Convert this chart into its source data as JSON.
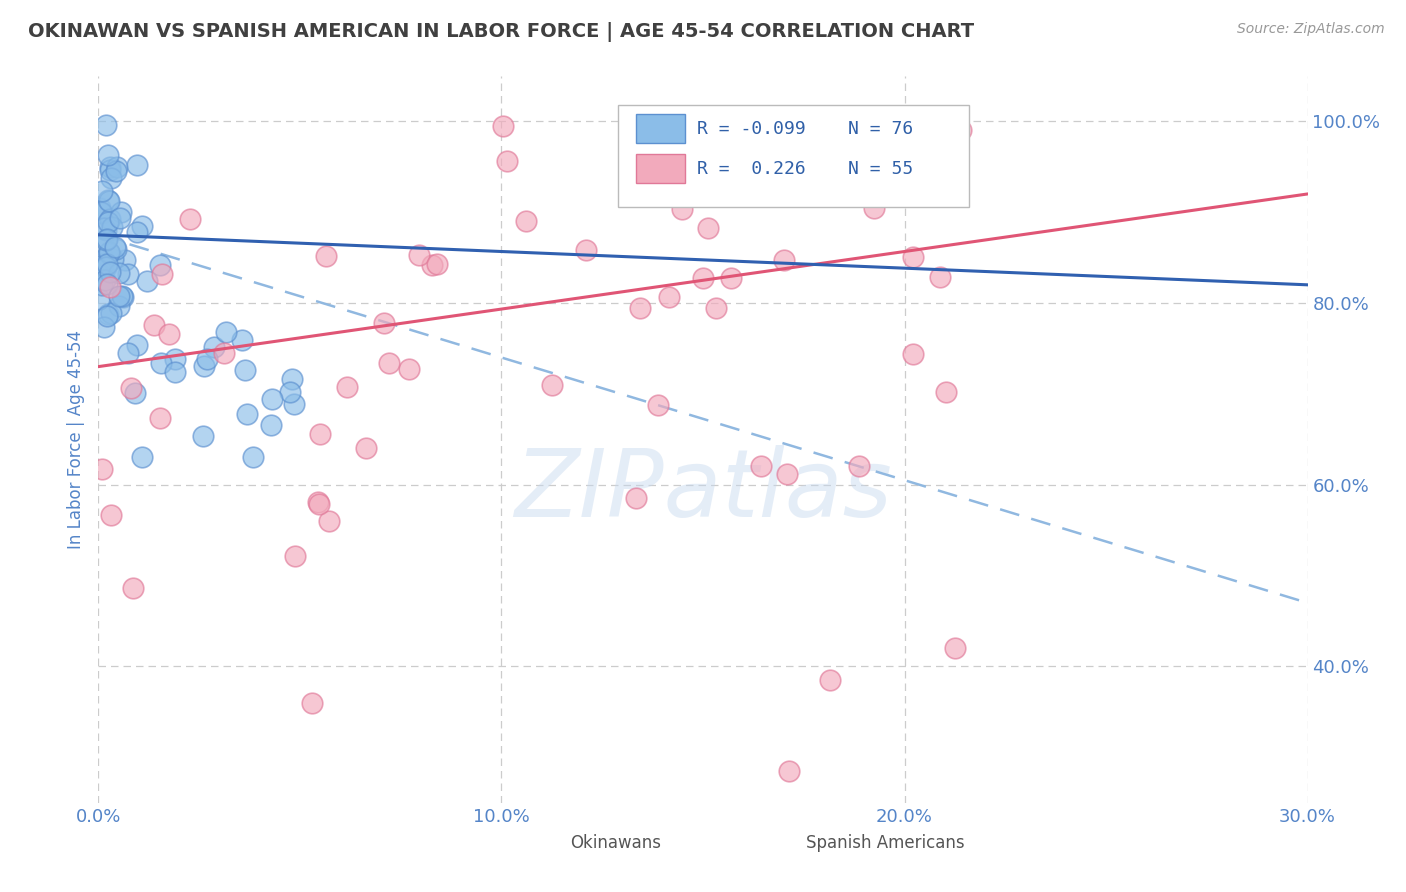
{
  "title": "OKINAWAN VS SPANISH AMERICAN IN LABOR FORCE | AGE 45-54 CORRELATION CHART",
  "source": "Source: ZipAtlas.com",
  "ylabel": "In Labor Force | Age 45-54",
  "xlim": [
    0.0,
    30.0
  ],
  "ylim": [
    25.0,
    105.0
  ],
  "xticks": [
    0.0,
    10.0,
    20.0,
    30.0
  ],
  "xtick_labels": [
    "0.0%",
    "10.0%",
    "20.0%",
    "30.0%"
  ],
  "yticks": [
    40.0,
    60.0,
    80.0,
    100.0
  ],
  "ytick_labels": [
    "40.0%",
    "60.0%",
    "80.0%",
    "100.0%"
  ],
  "legend_labels": [
    "Okinawans",
    "Spanish Americans"
  ],
  "okinawan_color": "#8BBDE8",
  "spanish_color": "#F2AABC",
  "okinawan_edge": "#5C90D0",
  "spanish_edge": "#E07898",
  "trend_blue": "#3060B0",
  "trend_pink": "#E05575",
  "trend_dashed_color": "#90B8E0",
  "R_okinawan": -0.099,
  "N_okinawan": 76,
  "R_spanish": 0.226,
  "N_spanish": 55,
  "background_color": "#FFFFFF",
  "grid_color": "#CCCCCC",
  "title_color": "#404040",
  "tick_color": "#5585C8",
  "legend_r_color": "#3060A8",
  "watermark": "ZIPatlas",
  "ok_trend_x0": 0.0,
  "ok_trend_y0": 87.5,
  "ok_trend_x1": 30.0,
  "ok_trend_y1": 82.0,
  "ok_dash_x0": 0.0,
  "ok_dash_y0": 87.5,
  "ok_dash_x1": 30.0,
  "ok_dash_y1": 47.0,
  "sp_trend_x0": 0.0,
  "sp_trend_y0": 73.0,
  "sp_trend_x1": 30.0,
  "sp_trend_y1": 92.0
}
